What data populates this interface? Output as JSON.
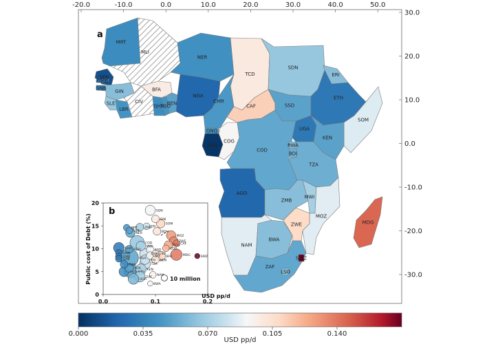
{
  "panel_a_label": "a",
  "panel_b_label": "b",
  "map": {
    "lon_ticks": [
      "-20.0",
      "-10.0",
      "0.0",
      "10.0",
      "20.0",
      "30.0",
      "40.0",
      "50.0"
    ],
    "lat_ticks": [
      "30.0",
      "20.0",
      "10.0",
      "0.0",
      "-10.0",
      "-20.0",
      "-30.0"
    ],
    "countries": [
      {
        "code": "MRT",
        "value": 0.04
      },
      {
        "code": "MLI",
        "value": null
      },
      {
        "code": "NER",
        "value": 0.042
      },
      {
        "code": "TCD",
        "value": 0.1
      },
      {
        "code": "SDN",
        "value": 0.066
      },
      {
        "code": "ERI",
        "value": 0.062
      },
      {
        "code": "SEN",
        "value": 0.012
      },
      {
        "code": "GMB",
        "value": 0.03
      },
      {
        "code": "GNB",
        "value": 0.035
      },
      {
        "code": "GIN",
        "value": 0.062
      },
      {
        "code": "SLE",
        "value": 0.066
      },
      {
        "code": "LBR",
        "value": 0.044
      },
      {
        "code": "CIV",
        "value": null
      },
      {
        "code": "BFA",
        "value": 0.098
      },
      {
        "code": "GHA",
        "value": 0.04
      },
      {
        "code": "TGO",
        "value": 0.044
      },
      {
        "code": "BEN",
        "value": 0.05
      },
      {
        "code": "NGA",
        "value": 0.022
      },
      {
        "code": "CMR",
        "value": 0.046
      },
      {
        "code": "CAF",
        "value": 0.112
      },
      {
        "code": "SSD",
        "value": 0.05
      },
      {
        "code": "ETH",
        "value": 0.03
      },
      {
        "code": "SOM",
        "value": 0.085
      },
      {
        "code": "GNQ",
        "value": 0.045
      },
      {
        "code": "GAB",
        "value": 0.002
      },
      {
        "code": "COG",
        "value": 0.092
      },
      {
        "code": "COD",
        "value": 0.052
      },
      {
        "code": "UGA",
        "value": 0.03
      },
      {
        "code": "KEN",
        "value": 0.05
      },
      {
        "code": "RWA",
        "value": 0.06
      },
      {
        "code": "BDI",
        "value": 0.055
      },
      {
        "code": "TZA",
        "value": 0.055
      },
      {
        "code": "AGO",
        "value": 0.022
      },
      {
        "code": "ZMB",
        "value": 0.062
      },
      {
        "code": "MWI",
        "value": 0.07
      },
      {
        "code": "MOZ",
        "value": 0.086
      },
      {
        "code": "MDG",
        "value": 0.145
      },
      {
        "code": "NAM",
        "value": 0.086
      },
      {
        "code": "BWA",
        "value": 0.062
      },
      {
        "code": "ZWE",
        "value": 0.108
      },
      {
        "code": "ZAF",
        "value": 0.052
      },
      {
        "code": "SWZ",
        "value": 0.175
      },
      {
        "code": "LSO",
        "value": 0.06
      }
    ]
  },
  "inset": {
    "ylabel": "Public cost of Debt (%)",
    "xlabel": "USD pp/d",
    "x_ticks": [
      "0.0",
      "0.1",
      "0.2"
    ],
    "y_ticks": [
      "0",
      "5",
      "10",
      "15",
      "20"
    ],
    "legend_label": "10 million"
  },
  "colorbar": {
    "label": "USD pp/d",
    "ticks": [
      "0.000",
      "0.035",
      "0.070",
      "0.105",
      "0.140"
    ]
  },
  "chart_data": {
    "type": "scatter",
    "title": "",
    "xlabel": "USD pp/d",
    "ylabel": "Public cost of Debt (%)",
    "xlim": [
      0,
      0.2
    ],
    "ylim": [
      0,
      20
    ],
    "grid": false,
    "points": [
      {
        "label": "SDN",
        "x": 0.09,
        "y": 18.4,
        "size": 6
      },
      {
        "label": "GIN",
        "x": 0.1,
        "y": 16.5,
        "size": 3
      },
      {
        "label": "ZMB",
        "x": 0.07,
        "y": 14.7,
        "size": 3
      },
      {
        "label": "ERI",
        "x": 0.083,
        "y": 14.9,
        "size": 2
      },
      {
        "label": "SOM",
        "x": 0.11,
        "y": 15.5,
        "size": 4
      },
      {
        "label": "MRT",
        "x": 0.045,
        "y": 14.6,
        "size": 2
      },
      {
        "label": "LBR",
        "x": 0.05,
        "y": 14.0,
        "size": 2
      },
      {
        "label": "NER",
        "x": 0.052,
        "y": 13.5,
        "size": 5
      },
      {
        "label": "BDI",
        "x": 0.103,
        "y": 13.8,
        "size": 3
      },
      {
        "label": "MOZ",
        "x": 0.13,
        "y": 12.9,
        "size": 5
      },
      {
        "label": "ZWE",
        "x": 0.135,
        "y": 11.7,
        "size": 4
      },
      {
        "label": "CAF",
        "x": 0.14,
        "y": 11.2,
        "size": 2
      },
      {
        "label": "COD",
        "x": 0.065,
        "y": 11.3,
        "size": 14
      },
      {
        "label": "MWI",
        "x": 0.072,
        "y": 10.6,
        "size": 5
      },
      {
        "label": "TCD",
        "x": 0.125,
        "y": 10.8,
        "size": 4
      },
      {
        "label": "COG",
        "x": 0.12,
        "y": 10.1,
        "size": 2
      },
      {
        "label": "GHA",
        "x": 0.03,
        "y": 10.2,
        "size": 7
      },
      {
        "label": "TGO",
        "x": 0.05,
        "y": 9.9,
        "size": 3
      },
      {
        "label": "SSD",
        "x": 0.09,
        "y": 9.8,
        "size": 3
      },
      {
        "label": "CMR",
        "x": 0.08,
        "y": 8.9,
        "size": 7
      },
      {
        "label": "LSO",
        "x": 0.1,
        "y": 9.0,
        "size": 2
      },
      {
        "label": "GNQ",
        "x": 0.03,
        "y": 9.1,
        "size": 2
      },
      {
        "label": "SLE",
        "x": 0.09,
        "y": 8.5,
        "size": 3
      },
      {
        "label": "GMB",
        "x": 0.03,
        "y": 8.3,
        "size": 2
      },
      {
        "label": "BFA",
        "x": 0.11,
        "y": 8.4,
        "size": 5
      },
      {
        "label": "NGA",
        "x": 0.05,
        "y": 8.0,
        "size": 24
      },
      {
        "label": "GAB",
        "x": 0.03,
        "y": 7.8,
        "size": 2
      },
      {
        "label": "CIV",
        "x": 0.08,
        "y": 7.6,
        "size": 5
      },
      {
        "label": "BEN",
        "x": 0.1,
        "y": 7.6,
        "size": 3
      },
      {
        "label": "RWA",
        "x": 0.04,
        "y": 6.6,
        "size": 3
      },
      {
        "label": "TZA",
        "x": 0.08,
        "y": 6.7,
        "size": 7
      },
      {
        "label": "SEN",
        "x": 0.05,
        "y": 5.8,
        "size": 4
      },
      {
        "label": "KEN",
        "x": 0.072,
        "y": 5.5,
        "size": 7
      },
      {
        "label": "AGO",
        "x": 0.04,
        "y": 5.0,
        "size": 6
      },
      {
        "label": "ETH",
        "x": 0.053,
        "y": 5.1,
        "size": 12
      },
      {
        "label": "ZAF",
        "x": 0.07,
        "y": 3.9,
        "size": 7
      },
      {
        "label": "UGA",
        "x": 0.058,
        "y": 3.4,
        "size": 7
      },
      {
        "label": "MDG",
        "x": 0.14,
        "y": 8.7,
        "size": 8
      },
      {
        "label": "SWZ",
        "x": 0.18,
        "y": 8.4,
        "size": 1
      },
      {
        "label": "NAM",
        "x": 0.095,
        "y": 4.3,
        "size": 2
      },
      {
        "label": "BWA",
        "x": 0.09,
        "y": 2.4,
        "size": 1
      }
    ]
  }
}
